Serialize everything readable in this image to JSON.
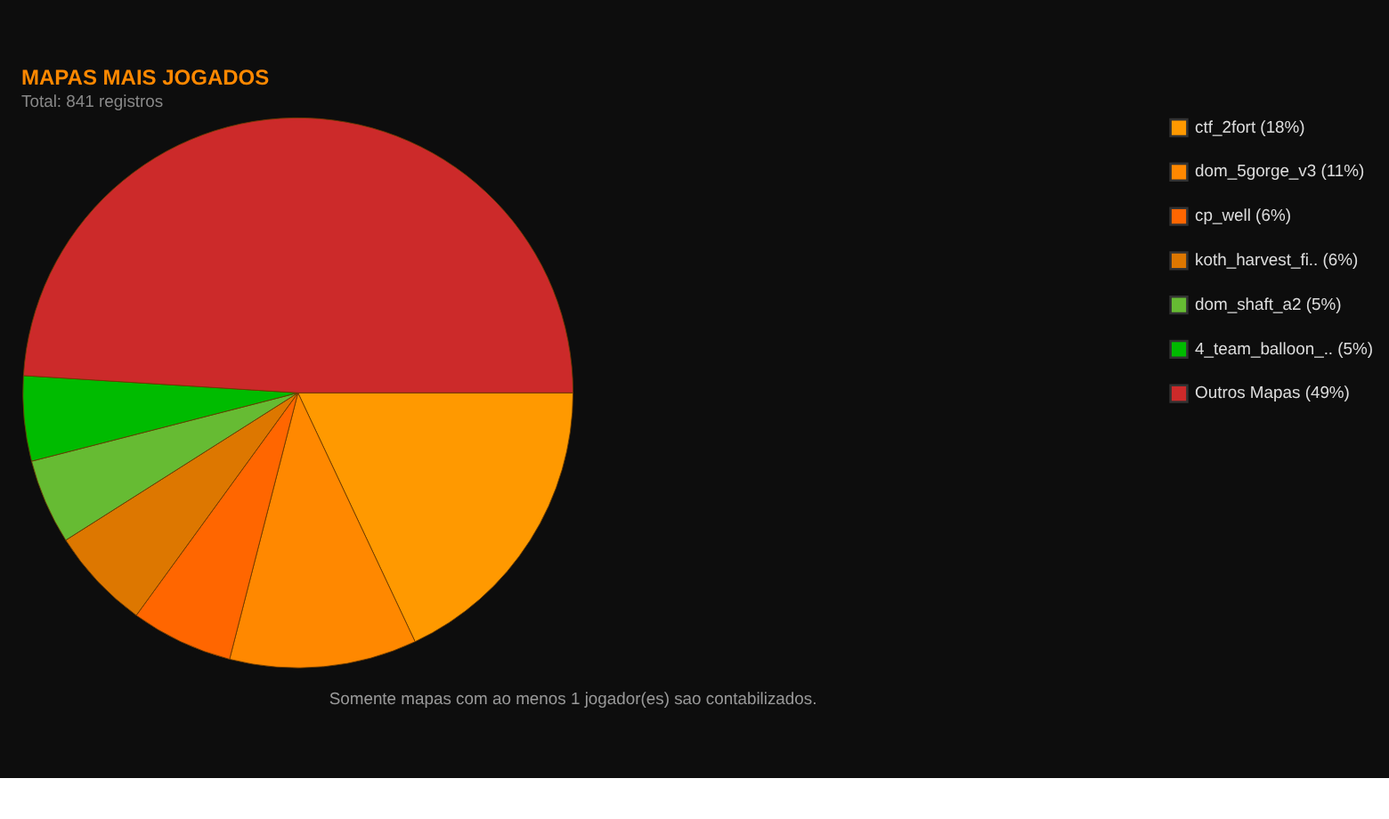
{
  "chart_data": {
    "type": "pie",
    "title": "MAPAS MAIS JOGADOS",
    "categories": [
      "ctf_2fort (18%)",
      "dom_5gorge_v3 (11%)",
      "cp_well (6%)",
      "koth_harvest_fi.. (6%)",
      "dom_shaft_a2 (5%)",
      "4_team_balloon_.. (5%)",
      "Outros Mapas (49%)"
    ],
    "values": [
      18,
      11,
      6,
      6,
      5,
      5,
      49
    ],
    "colors": [
      "#ff9900",
      "#ff8800",
      "#ff6600",
      "#dd7700",
      "#66bb33",
      "#00bb00",
      "#cc2a2a"
    ],
    "legend": "right",
    "annotations": [
      "Total: 841 registros",
      "Somente mapas com ao menos 1 jogador(es) sao contabilizados."
    ]
  }
}
